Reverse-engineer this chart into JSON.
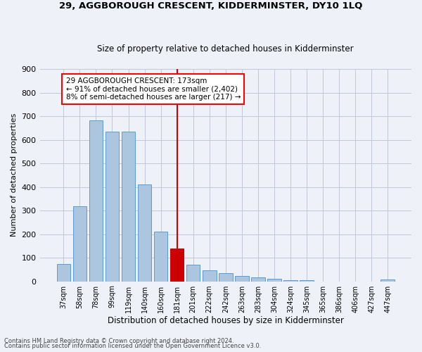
{
  "title": "29, AGGBOROUGH CRESCENT, KIDDERMINSTER, DY10 1LQ",
  "subtitle": "Size of property relative to detached houses in Kidderminster",
  "xlabel": "Distribution of detached houses by size in Kidderminster",
  "ylabel": "Number of detached properties",
  "footnote1": "Contains HM Land Registry data © Crown copyright and database right 2024.",
  "footnote2": "Contains public sector information licensed under the Open Government Licence v3.0.",
  "annotation_line1": "29 AGGBOROUGH CRESCENT: 173sqm",
  "annotation_line2": "← 91% of detached houses are smaller (2,402)",
  "annotation_line3": "8% of semi-detached houses are larger (217) →",
  "bar_color": "#adc6e0",
  "bar_edge_color": "#5b9bd5",
  "highlight_color": "#cc0000",
  "background_color": "#eef2f8",
  "categories": [
    "37sqm",
    "58sqm",
    "78sqm",
    "99sqm",
    "119sqm",
    "140sqm",
    "160sqm",
    "181sqm",
    "201sqm",
    "222sqm",
    "242sqm",
    "263sqm",
    "283sqm",
    "304sqm",
    "324sqm",
    "345sqm",
    "365sqm",
    "386sqm",
    "406sqm",
    "427sqm",
    "447sqm"
  ],
  "values": [
    72,
    318,
    682,
    635,
    635,
    412,
    210,
    138,
    70,
    46,
    35,
    22,
    18,
    12,
    5,
    5,
    0,
    0,
    0,
    0,
    8
  ],
  "highlight_index": 7,
  "ylim": [
    0,
    900
  ],
  "yticks": [
    0,
    100,
    200,
    300,
    400,
    500,
    600,
    700,
    800,
    900
  ]
}
